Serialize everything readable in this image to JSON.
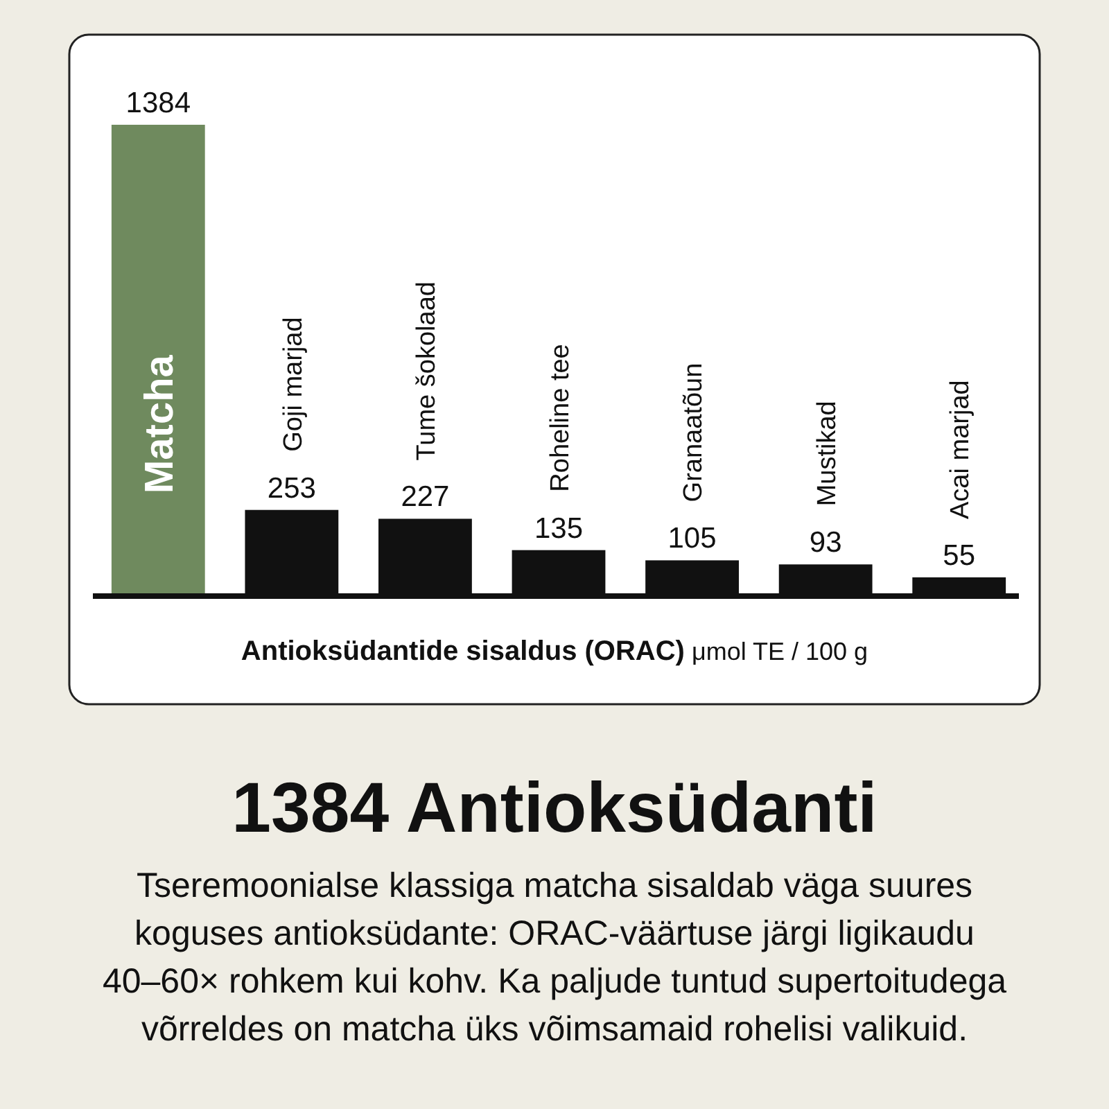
{
  "chart_data": {
    "type": "bar",
    "title": "1384 Antioksüdanti",
    "subtitle": "Tseremoonialse klassiga matcha sisaldab väga suures koguses antioksüdante: ORAC-väärtuse järgi ligikaudu 40–60× rohkem kui kohv. Ka paljude tuntud supertoitudega võrreldes on matcha üks võimsamaid rohelisi valikuid.",
    "xlabel": "Antioksüdantide sisaldus (ORAC) μmol TE / 100 g",
    "categories": [
      "Matcha",
      "Goji marjad",
      "Tume šokolaad",
      "Roheline tee",
      "Granaatõun",
      "Mustikad",
      "Acai marjad"
    ],
    "values": [
      1384,
      253,
      227,
      135,
      105,
      93,
      55
    ],
    "colors": [
      "#6f8a5e",
      "#111111",
      "#111111",
      "#111111",
      "#111111",
      "#111111",
      "#111111"
    ],
    "data_labels": true
  }
}
